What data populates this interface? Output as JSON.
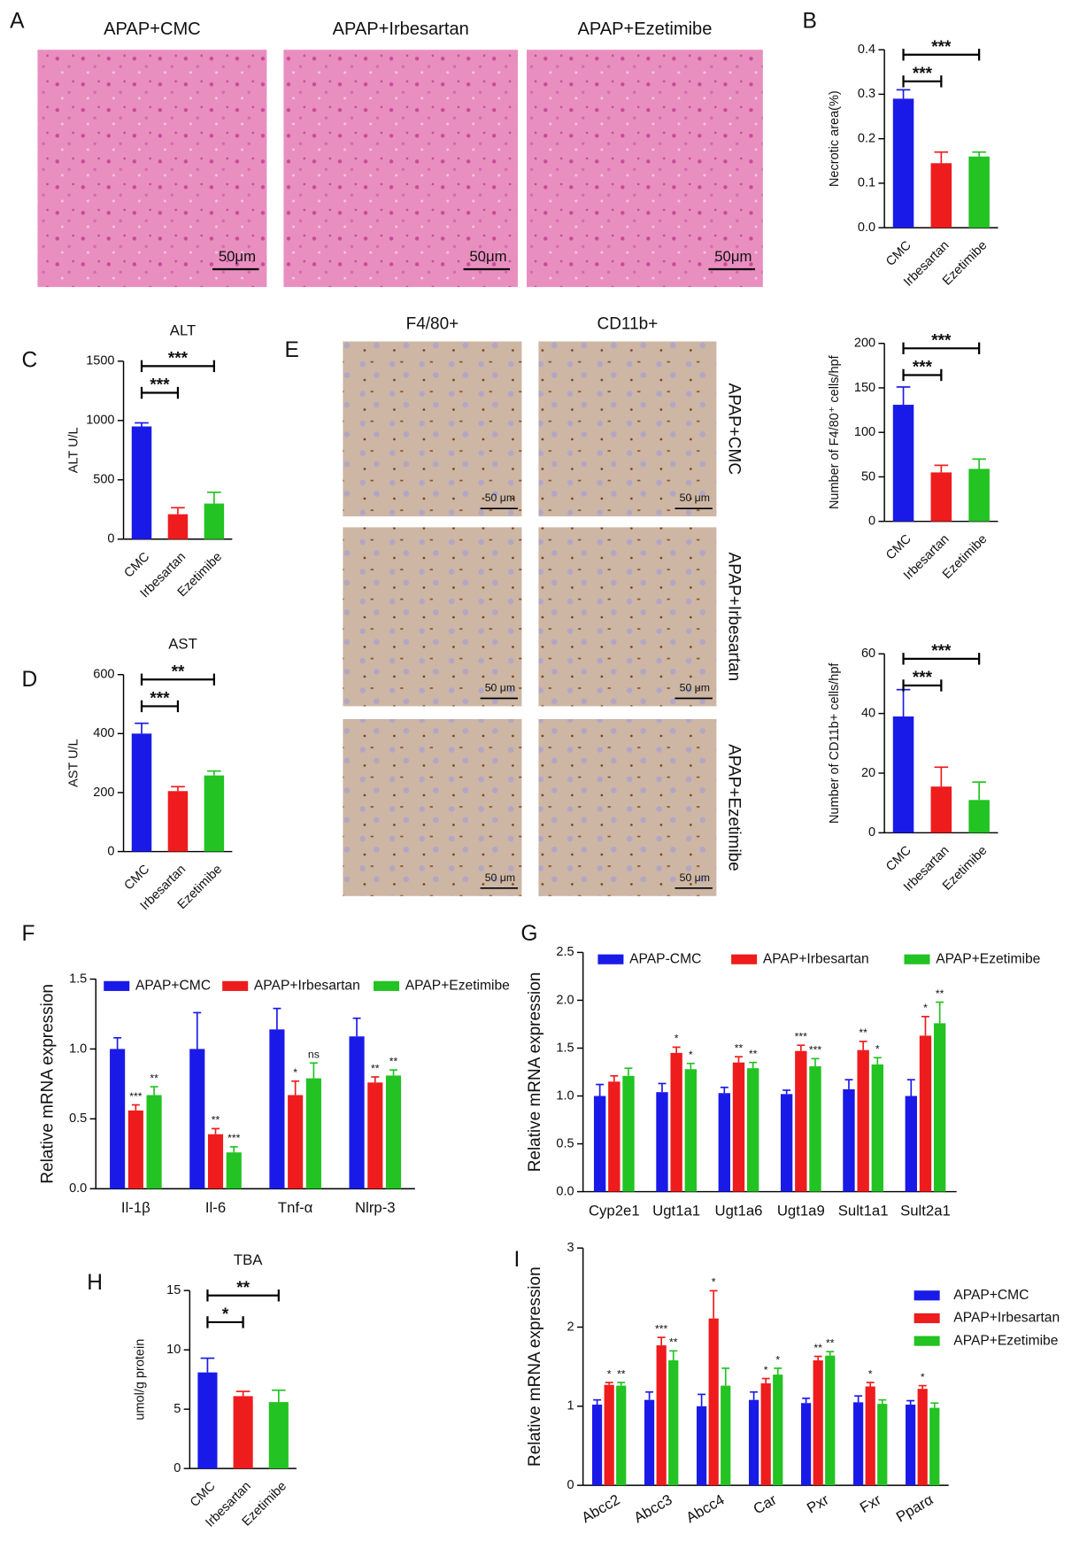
{
  "panels": {
    "A": {
      "label": "A",
      "titles": [
        "APAP+CMC",
        "APAP+Irbesartan",
        "APAP+Ezetimibe"
      ],
      "scale_bar": "50μm"
    },
    "E": {
      "label": "E",
      "columns": [
        "F4/80+",
        "CD11b+"
      ],
      "rows": [
        "APAP+CMC",
        "APAP+Irbesartan",
        "APAP+Ezetimibe"
      ],
      "scale_bar": "50 μm"
    }
  },
  "chart_data": [
    {
      "type": "bar",
      "panel": "B",
      "ylabel": "Necrotic area(%)",
      "categories": [
        "CMC",
        "Irbesartan",
        "Ezetimibe"
      ],
      "values": [
        0.29,
        0.145,
        0.16
      ],
      "errors": [
        0.02,
        0.025,
        0.01
      ],
      "colors": [
        "#1a1ae8",
        "#ee1c1c",
        "#22c322"
      ],
      "ylim": [
        0,
        0.4
      ],
      "yticks": [
        {
          "value": 0,
          "label": "0.0"
        },
        0.1,
        0.2,
        0.3,
        0.4
      ],
      "brackets": [
        {
          "between": [
            "CMC",
            "Ezetimibe"
          ],
          "label": "***"
        },
        {
          "between": [
            "CMC",
            "Irbesartan"
          ],
          "label": "***"
        }
      ]
    },
    {
      "type": "bar",
      "ylabel": "Number of F4/80⁺ cells/hpf",
      "categories": [
        "CMC",
        "Irbesartan",
        "Ezetimibe"
      ],
      "values": [
        131,
        55,
        59
      ],
      "errors": [
        20,
        8,
        11
      ],
      "colors": [
        "#1a1ae8",
        "#ee1c1c",
        "#22c322"
      ],
      "ylim": [
        0,
        200
      ],
      "yticks": [
        0,
        50,
        100,
        150,
        200
      ],
      "brackets": [
        {
          "between": [
            "CMC",
            "Ezetimibe"
          ],
          "label": "***"
        },
        {
          "between": [
            "CMC",
            "Irbesartan"
          ],
          "label": "***"
        }
      ]
    },
    {
      "type": "bar",
      "ylabel": "Number of CD11b+ cells/hpf",
      "categories": [
        "CMC",
        "Irbesartan",
        "Ezetimibe"
      ],
      "values": [
        39,
        15.5,
        11
      ],
      "errors": [
        9,
        6.5,
        6
      ],
      "colors": [
        "#1a1ae8",
        "#ee1c1c",
        "#22c322"
      ],
      "ylim": [
        0,
        60
      ],
      "yticks": [
        0,
        20,
        40,
        60
      ],
      "brackets": [
        {
          "between": [
            "CMC",
            "Ezetimibe"
          ],
          "label": "***"
        },
        {
          "between": [
            "CMC",
            "Irbesartan"
          ],
          "label": "***"
        }
      ]
    },
    {
      "type": "bar",
      "panel": "C",
      "title": "ALT",
      "ylabel": "ALT U/L",
      "categories": [
        "CMC",
        "Irbesartan",
        "Ezetimibe"
      ],
      "values": [
        950,
        210,
        300
      ],
      "errors": [
        30,
        55,
        95
      ],
      "colors": [
        "#1a1ae8",
        "#ee1c1c",
        "#22c322"
      ],
      "ylim": [
        0,
        1500
      ],
      "yticks": [
        0,
        500,
        1000,
        1500
      ],
      "brackets": [
        {
          "between": [
            "CMC",
            "Ezetimibe"
          ],
          "label": "***"
        },
        {
          "between": [
            "CMC",
            "Irbesartan"
          ],
          "label": "***"
        }
      ]
    },
    {
      "type": "bar",
      "panel": "D",
      "title": "AST",
      "ylabel": "AST U/L",
      "categories": [
        "CMC",
        "Irbesartan",
        "Ezetimibe"
      ],
      "values": [
        400,
        205,
        258
      ],
      "errors": [
        35,
        15,
        15
      ],
      "colors": [
        "#1a1ae8",
        "#ee1c1c",
        "#22c322"
      ],
      "ylim": [
        0,
        600
      ],
      "yticks": [
        0,
        200,
        400,
        600
      ],
      "brackets": [
        {
          "between": [
            "CMC",
            "Ezetimibe"
          ],
          "label": "**"
        },
        {
          "between": [
            "CMC",
            "Irbesartan"
          ],
          "label": "***"
        }
      ]
    },
    {
      "type": "bar",
      "panel": "H",
      "title": "TBA",
      "ylabel": "umol/g protein",
      "categories": [
        "CMC",
        "Irbesartan",
        "Ezetimibe"
      ],
      "values": [
        8.1,
        6.1,
        5.6
      ],
      "errors": [
        1.2,
        0.4,
        1.0
      ],
      "colors": [
        "#1a1ae8",
        "#ee1c1c",
        "#22c322"
      ],
      "ylim": [
        0,
        15
      ],
      "yticks": [
        0,
        5,
        10,
        15
      ],
      "brackets": [
        {
          "between": [
            "CMC",
            "Ezetimibe"
          ],
          "label": "**"
        },
        {
          "between": [
            "CMC",
            "Irbesartan"
          ],
          "label": "*"
        }
      ]
    },
    {
      "type": "grouped_bar",
      "panel": "F",
      "ylabel": "Relative mRNA expression",
      "categories": [
        "Il-1β",
        "Il-6",
        "Tnf-α",
        "Nlrp-3"
      ],
      "ylim": [
        0,
        1.5
      ],
      "yticks": [
        {
          "value": 0,
          "label": "0.0"
        },
        0.5,
        {
          "value": 1,
          "label": "1.0"
        },
        1.5
      ],
      "series": [
        {
          "name": "APAP+CMC",
          "color": "#1a1ae8",
          "values": [
            1.0,
            1.0,
            1.14,
            1.09
          ],
          "errors": [
            0.08,
            0.26,
            0.15,
            0.13
          ],
          "sig": [
            null,
            null,
            null,
            null
          ]
        },
        {
          "name": "APAP+Irbesartan",
          "color": "#ee1c1c",
          "values": [
            0.56,
            0.39,
            0.67,
            0.76
          ],
          "errors": [
            0.04,
            0.04,
            0.1,
            0.04
          ],
          "sig": [
            "***",
            "**",
            "*",
            "**"
          ]
        },
        {
          "name": "APAP+Ezetimibe",
          "color": "#22c322",
          "values": [
            0.67,
            0.26,
            0.79,
            0.81
          ],
          "errors": [
            0.06,
            0.04,
            0.11,
            0.04
          ],
          "sig": [
            "**",
            "***",
            "ns",
            "**"
          ]
        }
      ]
    },
    {
      "type": "grouped_bar",
      "panel": "G",
      "ylabel": "Relative mRNA expression",
      "categories": [
        "Cyp2e1",
        "Ugt1a1",
        "Ugt1a6",
        "Ugt1a9",
        "Sult1a1",
        "Sult2a1"
      ],
      "ylim": [
        0,
        2.5
      ],
      "yticks": [
        {
          "value": 0,
          "label": "0.0"
        },
        0.5,
        {
          "value": 1,
          "label": "1.0"
        },
        1.5,
        {
          "value": 2,
          "label": "2.0"
        },
        2.5
      ],
      "series": [
        {
          "name": "APAP-CMC",
          "color": "#1a1ae8",
          "values": [
            1.0,
            1.04,
            1.03,
            1.02,
            1.07,
            1.0
          ],
          "errors": [
            0.12,
            0.09,
            0.06,
            0.04,
            0.1,
            0.17
          ],
          "sig": [
            null,
            null,
            null,
            null,
            null,
            null
          ]
        },
        {
          "name": "APAP+Irbesartan",
          "color": "#ee1c1c",
          "values": [
            1.15,
            1.45,
            1.35,
            1.47,
            1.48,
            1.63
          ],
          "errors": [
            0.06,
            0.06,
            0.06,
            0.06,
            0.09,
            0.2
          ],
          "sig": [
            null,
            "*",
            "**",
            "***",
            "**",
            "*"
          ]
        },
        {
          "name": "APAP+Ezetimibe",
          "color": "#22c322",
          "values": [
            1.21,
            1.28,
            1.29,
            1.31,
            1.33,
            1.76
          ],
          "errors": [
            0.08,
            0.06,
            0.06,
            0.08,
            0.07,
            0.22
          ],
          "sig": [
            null,
            "*",
            "**",
            "***",
            "*",
            "**"
          ]
        }
      ]
    },
    {
      "type": "grouped_bar",
      "panel": "I",
      "ylabel": "Relative mRNA expression",
      "categories": [
        "Abcc2",
        "Abcc3",
        "Abcc4",
        "Car",
        "Pxr",
        "Fxr",
        "Pparα"
      ],
      "ylim": [
        0,
        3
      ],
      "yticks": [
        0,
        1,
        2,
        3
      ],
      "series": [
        {
          "name": "APAP+CMC",
          "color": "#1a1ae8",
          "values": [
            1.02,
            1.08,
            1.0,
            1.08,
            1.04,
            1.05,
            1.02
          ],
          "errors": [
            0.06,
            0.1,
            0.15,
            0.1,
            0.06,
            0.08,
            0.05
          ],
          "sig": [
            null,
            null,
            null,
            null,
            null,
            null,
            null
          ]
        },
        {
          "name": "APAP+Irbesartan",
          "color": "#ee1c1c",
          "values": [
            1.27,
            1.77,
            2.11,
            1.29,
            1.58,
            1.25,
            1.22
          ],
          "errors": [
            0.03,
            0.1,
            0.35,
            0.06,
            0.05,
            0.05,
            0.04
          ],
          "sig": [
            "*",
            "***",
            "*",
            "*",
            "**",
            "*",
            "*"
          ]
        },
        {
          "name": "APAP+Ezetimibe",
          "color": "#22c322",
          "values": [
            1.26,
            1.58,
            1.26,
            1.4,
            1.64,
            1.03,
            0.98
          ],
          "errors": [
            0.04,
            0.12,
            0.22,
            0.08,
            0.05,
            0.05,
            0.06
          ],
          "sig": [
            "**",
            "**",
            null,
            "*",
            "**",
            null,
            null
          ]
        }
      ]
    }
  ]
}
